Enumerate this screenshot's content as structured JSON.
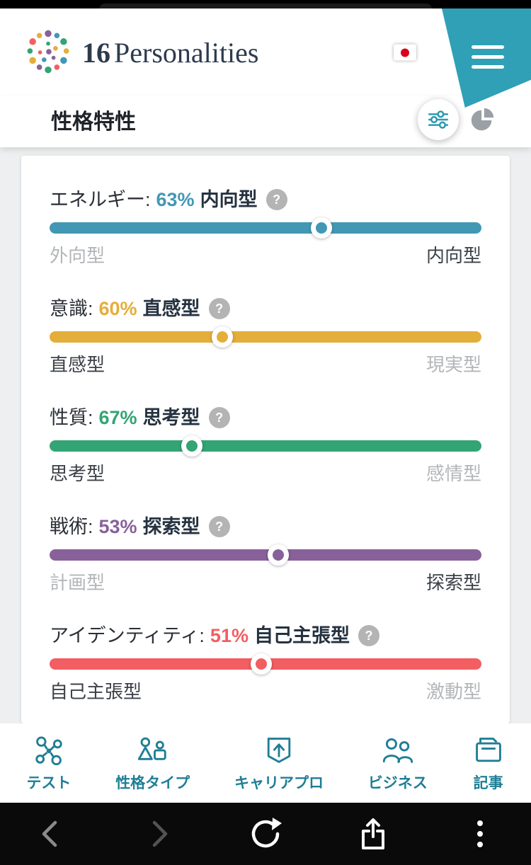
{
  "header": {
    "brand_number": "16",
    "brand_name": "Personalities",
    "language": "japanese-flag"
  },
  "section": {
    "title": "性格特性",
    "active_view": "sliders-view"
  },
  "card": {
    "help_label": "?",
    "traits": [
      {
        "id": "energy",
        "label": "エネルギー:",
        "percent_label": "63%",
        "value": 63,
        "winner": "内向型",
        "winner_side": "right",
        "left_label": "外向型",
        "right_label": "内向型",
        "color": "#4298b4"
      },
      {
        "id": "mind",
        "label": "意識:",
        "percent_label": "60%",
        "value": 60,
        "winner": "直感型",
        "winner_side": "left",
        "left_label": "直感型",
        "right_label": "現実型",
        "color": "#e4ae3a"
      },
      {
        "id": "nature",
        "label": "性質:",
        "percent_label": "67%",
        "value": 67,
        "winner": "思考型",
        "winner_side": "left",
        "left_label": "思考型",
        "right_label": "感情型",
        "color": "#33a474"
      },
      {
        "id": "tactics",
        "label": "戦術:",
        "percent_label": "53%",
        "value": 53,
        "winner": "探索型",
        "winner_side": "right",
        "left_label": "計画型",
        "right_label": "探索型",
        "color": "#88619a"
      },
      {
        "id": "identity",
        "label": "アイデンティティ:",
        "percent_label": "51%",
        "value": 51,
        "winner": "自己主張型",
        "winner_side": "left",
        "left_label": "自己主張型",
        "right_label": "激動型",
        "color": "#f25e62"
      }
    ]
  },
  "bottom_nav": {
    "items": [
      {
        "id": "test",
        "label": "テスト",
        "icon": "test-icon"
      },
      {
        "id": "types",
        "label": "性格タイプ",
        "icon": "personality-types-icon"
      },
      {
        "id": "career",
        "label": "キャリアプロ",
        "icon": "career-icon"
      },
      {
        "id": "business",
        "label": "ビジネス",
        "icon": "business-icon"
      },
      {
        "id": "articles",
        "label": "記事",
        "icon": "articles-icon"
      }
    ]
  },
  "browser_bar": {
    "icons": [
      "back",
      "forward",
      "reload",
      "share",
      "more"
    ]
  },
  "colors": {
    "brand_teal": "#2fa0b6",
    "nav_teal": "#1f7e95",
    "energy": "#4298b4",
    "mind": "#e4ae3a",
    "nature": "#33a474",
    "tactics": "#88619a",
    "identity": "#f25e62"
  }
}
